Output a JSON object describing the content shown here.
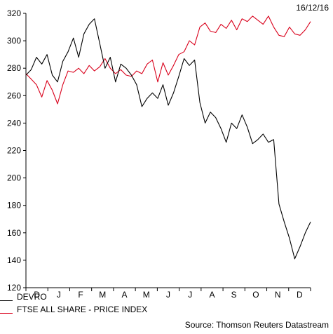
{
  "date_label": "16/12/16",
  "source": "Source: Thomson Reuters Datastream",
  "colors": {
    "devro": "#000000",
    "ftse": "#d9001b"
  },
  "chart_data": {
    "type": "line",
    "title": "",
    "xlabel": "",
    "ylabel": "",
    "ylim": [
      120,
      320
    ],
    "yticks": [
      120,
      140,
      160,
      180,
      200,
      220,
      240,
      260,
      280,
      300,
      320
    ],
    "x_month_labels": [
      "D",
      "J",
      "F",
      "M",
      "A",
      "M",
      "J",
      "J",
      "A",
      "S",
      "O",
      "N",
      "D"
    ],
    "x_range_weeks": [
      0,
      54
    ],
    "x_unit": "weeks from the start of the chart (first data point = week 0)",
    "grid": false,
    "legend_position": "bottom-left",
    "series": [
      {
        "name": "DEVRO",
        "x": [
          0,
          1,
          2,
          3,
          4,
          5,
          6,
          7,
          8,
          9,
          10,
          11,
          12,
          13,
          14,
          15,
          16,
          17,
          18,
          19,
          20,
          21,
          22,
          23,
          24,
          25,
          26,
          27,
          28,
          29,
          30,
          31,
          32,
          33,
          34,
          35,
          36,
          37,
          38,
          39,
          40,
          41,
          42,
          43,
          44,
          45,
          46,
          47,
          48,
          49,
          50,
          51,
          52,
          53,
          54
        ],
        "values": [
          275,
          279,
          288,
          283,
          290,
          275,
          270,
          285,
          292,
          302,
          288,
          305,
          312,
          316,
          298,
          280,
          288,
          270,
          283,
          280,
          275,
          268,
          252,
          258,
          262,
          258,
          268,
          253,
          262,
          274,
          287,
          282,
          286,
          255,
          240,
          248,
          244,
          236,
          226,
          240,
          236,
          246,
          237,
          225,
          228,
          232,
          226,
          228,
          181,
          168,
          156,
          141,
          150,
          160,
          168
        ]
      },
      {
        "name": "FTSE ALL SHARE - PRICE INDEX",
        "x": [
          0,
          1,
          2,
          3,
          4,
          5,
          6,
          7,
          8,
          9,
          10,
          11,
          12,
          13,
          14,
          15,
          16,
          17,
          18,
          19,
          20,
          21,
          22,
          23,
          24,
          25,
          26,
          27,
          28,
          29,
          30,
          31,
          32,
          33,
          34,
          35,
          36,
          37,
          38,
          39,
          40,
          41,
          42,
          43,
          44,
          45,
          46,
          47,
          48,
          49,
          50,
          51,
          52,
          53,
          54
        ],
        "values": [
          276,
          272,
          268,
          259,
          271,
          264,
          254,
          268,
          278,
          277,
          280,
          276,
          282,
          278,
          281,
          287,
          280,
          276,
          279,
          275,
          274,
          278,
          276,
          283,
          286,
          270,
          284,
          275,
          282,
          290,
          292,
          300,
          297,
          310,
          313,
          307,
          306,
          312,
          309,
          315,
          308,
          316,
          314,
          318,
          315,
          312,
          318,
          310,
          304,
          303,
          310,
          305,
          304,
          308,
          314
        ]
      }
    ]
  }
}
